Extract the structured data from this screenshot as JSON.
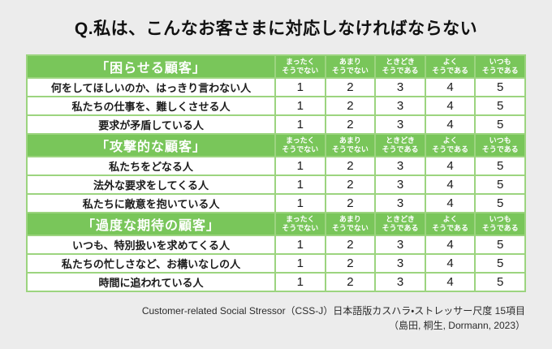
{
  "page": {
    "title": "Q.私は、こんなお客さまに対応しなければならない",
    "background_color": "#ececec"
  },
  "colors": {
    "header_green": "#79c65a",
    "border_green": "#9cd47f",
    "row_background": "#ffffff",
    "header_text": "#ffffff",
    "body_text": "#1b1b1b"
  },
  "table": {
    "scale_headers": [
      {
        "line1": "まったく",
        "line2": "そうでない"
      },
      {
        "line1": "あまり",
        "line2": "そうでない"
      },
      {
        "line1": "ときどき",
        "line2": "そうである"
      },
      {
        "line1": "よく",
        "line2": "そうである"
      },
      {
        "line1": "いつも",
        "line2": "そうである"
      }
    ],
    "sections": [
      {
        "title": "「困らせる顧客」",
        "rows": [
          {
            "label": "何をしてほしいのか、はっきり言わない人",
            "values": [
              "1",
              "2",
              "3",
              "4",
              "5"
            ]
          },
          {
            "label": "私たちの仕事を、難しくさせる人",
            "values": [
              "1",
              "2",
              "3",
              "4",
              "5"
            ]
          },
          {
            "label": "要求が矛盾している人",
            "values": [
              "1",
              "2",
              "3",
              "4",
              "5"
            ]
          }
        ]
      },
      {
        "title": "「攻撃的な顧客」",
        "rows": [
          {
            "label": "私たちをどなる人",
            "values": [
              "1",
              "2",
              "3",
              "4",
              "5"
            ]
          },
          {
            "label": "法外な要求をしてくる人",
            "values": [
              "1",
              "2",
              "3",
              "4",
              "5"
            ]
          },
          {
            "label": "私たちに敵意を抱いている人",
            "values": [
              "1",
              "2",
              "3",
              "4",
              "5"
            ]
          }
        ]
      },
      {
        "title": "「過度な期待の顧客」",
        "rows": [
          {
            "label": "いつも、特別扱いを求めてくる人",
            "values": [
              "1",
              "2",
              "3",
              "4",
              "5"
            ]
          },
          {
            "label": "私たちの忙しさなど、お構いなしの人",
            "values": [
              "1",
              "2",
              "3",
              "4",
              "5"
            ]
          },
          {
            "label": "時間に追われている人",
            "values": [
              "1",
              "2",
              "3",
              "4",
              "5"
            ]
          }
        ]
      }
    ]
  },
  "footer": {
    "line1": "Customer-related Social Stressor（CSS-J）日本語版カスハラ・ストレッサー尺度 15項目",
    "line2": "（島田, 桐生, Dormann, 2023）"
  }
}
